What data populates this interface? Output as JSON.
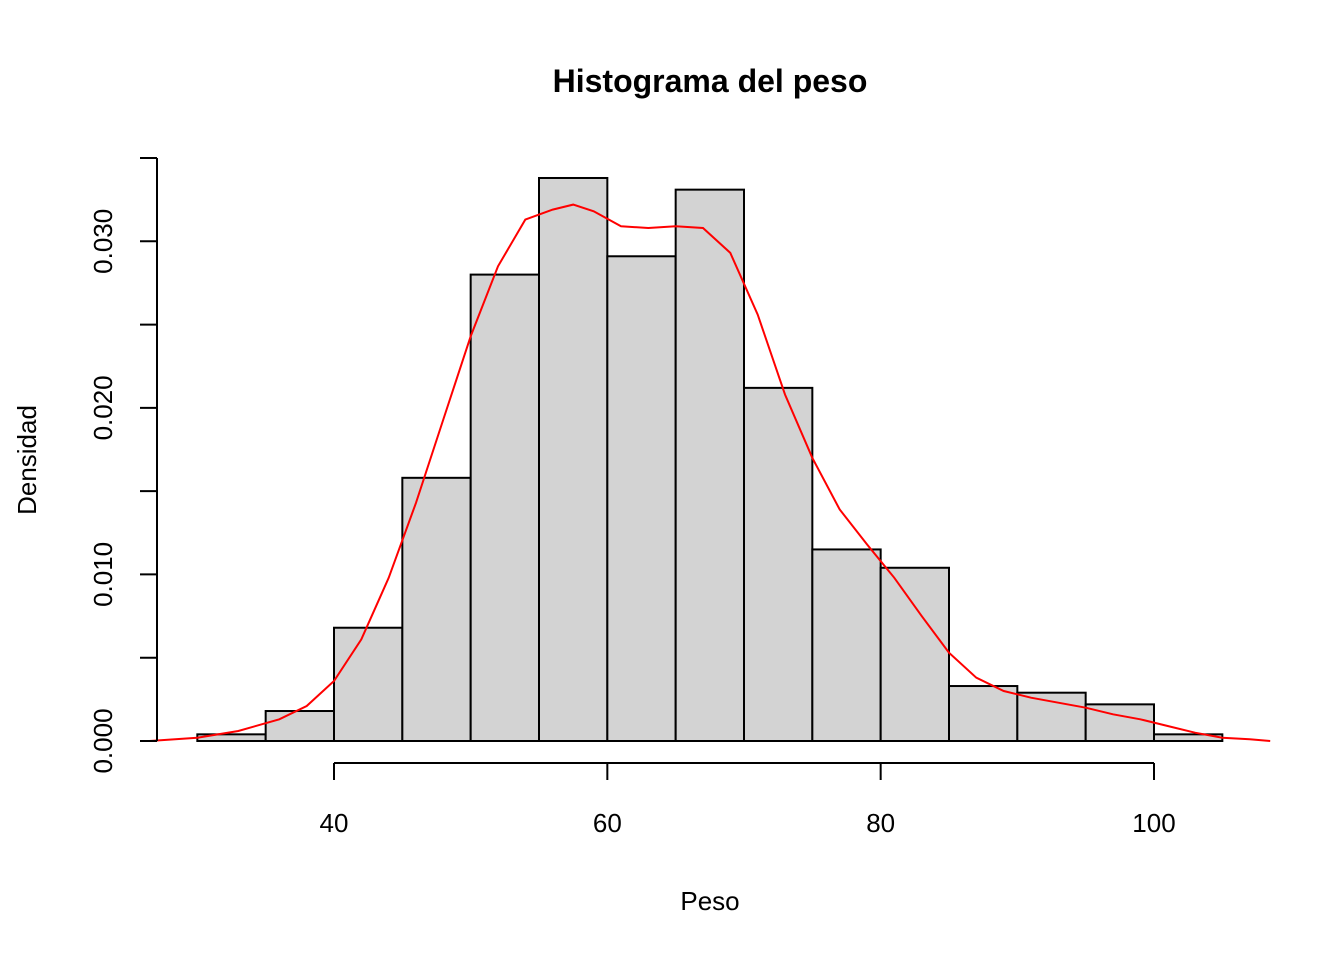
{
  "chart_data": {
    "type": "bar",
    "title": "Histograma del peso",
    "xlabel": "Peso",
    "ylabel": "Densidad",
    "xlim": [
      26,
      107
    ],
    "ylim": [
      0,
      0.035
    ],
    "x_ticks": [
      40,
      60,
      80,
      100
    ],
    "x_tick_labels": [
      "40",
      "60",
      "80",
      "100"
    ],
    "y_ticks": [
      0,
      0.005,
      0.01,
      0.015,
      0.02,
      0.025,
      0.03,
      0.035
    ],
    "y_tick_labels": [
      "0.000",
      "",
      "0.010",
      "",
      "0.020",
      "",
      "0.030",
      ""
    ],
    "grid": false,
    "bins": [
      {
        "start": 30,
        "end": 35,
        "density": 0.0004
      },
      {
        "start": 35,
        "end": 40,
        "density": 0.0018
      },
      {
        "start": 40,
        "end": 45,
        "density": 0.0068
      },
      {
        "start": 45,
        "end": 50,
        "density": 0.0158
      },
      {
        "start": 50,
        "end": 55,
        "density": 0.028
      },
      {
        "start": 55,
        "end": 60,
        "density": 0.0338
      },
      {
        "start": 60,
        "end": 65,
        "density": 0.0291
      },
      {
        "start": 65,
        "end": 70,
        "density": 0.0331
      },
      {
        "start": 70,
        "end": 75,
        "density": 0.0212
      },
      {
        "start": 75,
        "end": 80,
        "density": 0.0115
      },
      {
        "start": 80,
        "end": 85,
        "density": 0.0104
      },
      {
        "start": 85,
        "end": 90,
        "density": 0.0033
      },
      {
        "start": 90,
        "end": 95,
        "density": 0.0029
      },
      {
        "start": 95,
        "end": 100,
        "density": 0.0022
      },
      {
        "start": 100,
        "end": 105,
        "density": 0.0004
      }
    ],
    "density_curve": {
      "color": "#ff0000",
      "x": [
        26.5,
        30,
        33,
        36,
        38,
        40,
        42,
        44,
        46,
        48,
        50,
        52,
        54,
        56,
        57.5,
        59,
        61,
        63,
        65,
        67,
        69,
        71,
        73,
        75,
        77,
        79,
        81,
        83,
        85,
        87,
        89,
        91,
        93,
        95,
        97,
        99,
        101,
        103,
        105,
        107,
        108.5
      ],
      "y": [
        0.0,
        0.0002,
        0.0006,
        0.0013,
        0.0021,
        0.0036,
        0.0061,
        0.0098,
        0.0143,
        0.0193,
        0.0243,
        0.0285,
        0.0313,
        0.0319,
        0.0322,
        0.0318,
        0.0309,
        0.0308,
        0.0309,
        0.0308,
        0.0293,
        0.0256,
        0.0208,
        0.017,
        0.0139,
        0.0118,
        0.0098,
        0.0075,
        0.0053,
        0.0038,
        0.003,
        0.0026,
        0.0023,
        0.002,
        0.0016,
        0.0013,
        0.0009,
        0.0005,
        0.0002,
        0.0001,
        0.0
      ]
    }
  }
}
